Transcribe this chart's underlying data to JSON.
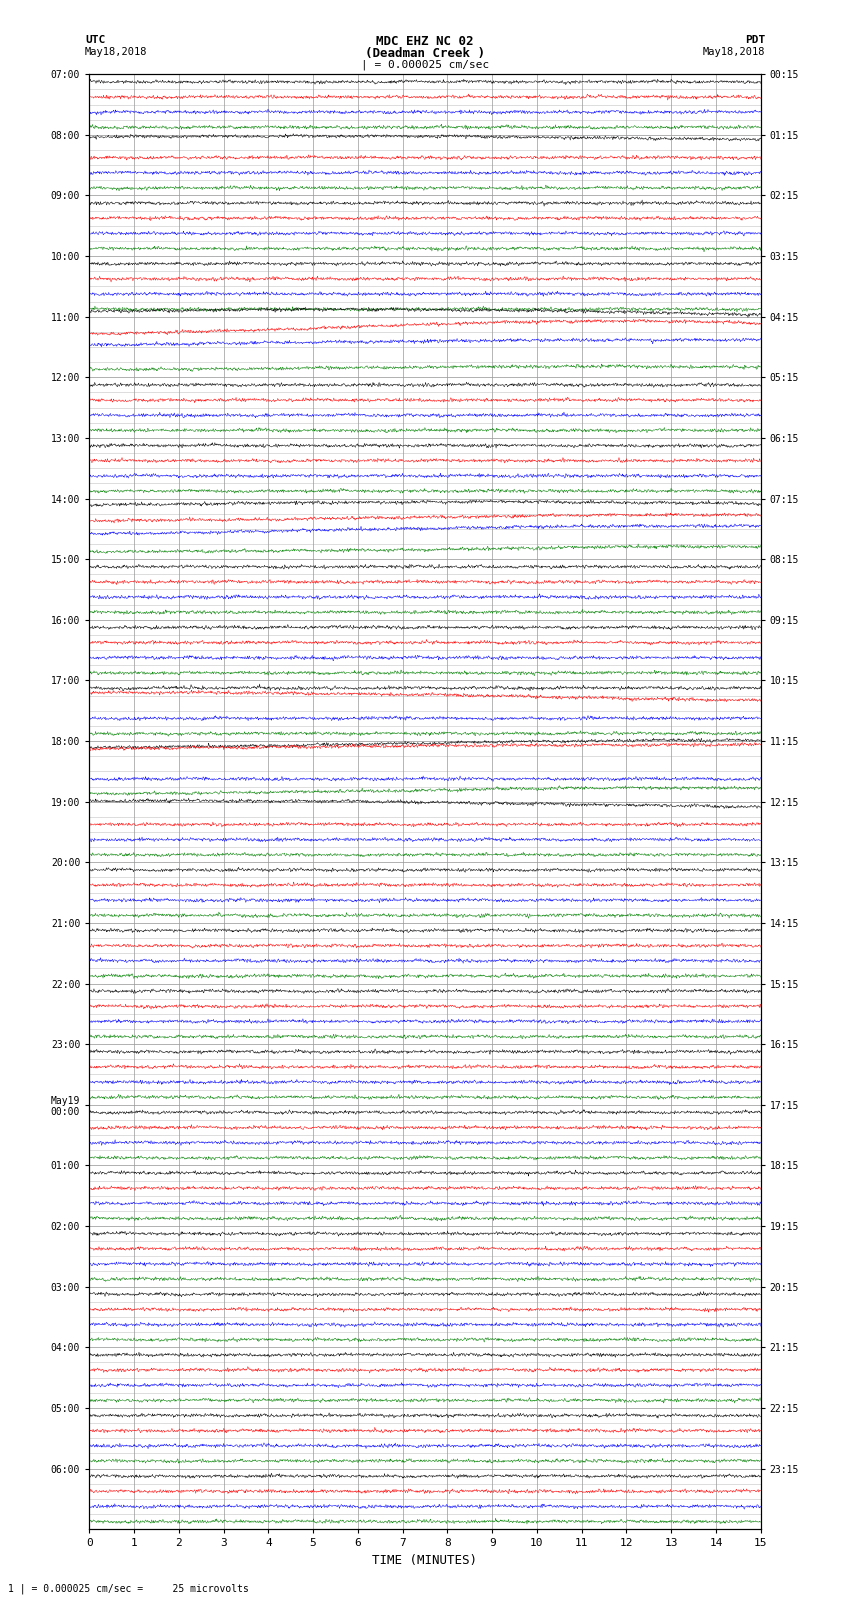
{
  "title_line1": "MDC EHZ NC 02",
  "title_line2": "(Deadman Creek )",
  "title_line3": "| = 0.000025 cm/sec",
  "left_label_top": "UTC",
  "left_label_date": "May18,2018",
  "right_label_top": "PDT",
  "right_label_date": "May18,2018",
  "bottom_label": "TIME (MINUTES)",
  "bottom_note": "1 | = 0.000025 cm/sec =     25 microvolts",
  "xlabel_ticks": [
    0,
    1,
    2,
    3,
    4,
    5,
    6,
    7,
    8,
    9,
    10,
    11,
    12,
    13,
    14,
    15
  ],
  "utc_labels": [
    "07:00",
    "08:00",
    "09:00",
    "10:00",
    "11:00",
    "12:00",
    "13:00",
    "14:00",
    "15:00",
    "16:00",
    "17:00",
    "18:00",
    "19:00",
    "20:00",
    "21:00",
    "22:00",
    "23:00",
    "May19\n00:00",
    "01:00",
    "02:00",
    "03:00",
    "04:00",
    "05:00",
    "06:00"
  ],
  "pdt_labels": [
    "00:15",
    "01:15",
    "02:15",
    "03:15",
    "04:15",
    "05:15",
    "06:15",
    "07:15",
    "08:15",
    "09:15",
    "10:15",
    "11:15",
    "12:15",
    "13:15",
    "14:15",
    "15:15",
    "16:15",
    "17:15",
    "18:15",
    "19:15",
    "20:15",
    "21:15",
    "22:15",
    "23:15"
  ],
  "trace_colors": [
    "black",
    "red",
    "blue",
    "green"
  ],
  "bg_color": "white",
  "grid_color": "#999999",
  "fig_width": 8.5,
  "fig_height": 16.13,
  "dpi": 100,
  "noise_amp": 0.25,
  "trace_scale": 0.28,
  "n_points": 2000
}
